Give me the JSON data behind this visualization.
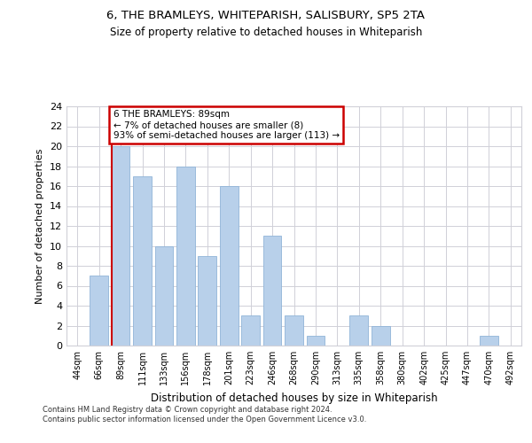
{
  "title_line1": "6, THE BRAMLEYS, WHITEPARISH, SALISBURY, SP5 2TA",
  "title_line2": "Size of property relative to detached houses in Whiteparish",
  "xlabel": "Distribution of detached houses by size in Whiteparish",
  "ylabel": "Number of detached properties",
  "categories": [
    "44sqm",
    "66sqm",
    "89sqm",
    "111sqm",
    "133sqm",
    "156sqm",
    "178sqm",
    "201sqm",
    "223sqm",
    "246sqm",
    "268sqm",
    "290sqm",
    "313sqm",
    "335sqm",
    "358sqm",
    "380sqm",
    "402sqm",
    "425sqm",
    "447sqm",
    "470sqm",
    "492sqm"
  ],
  "values": [
    0,
    7,
    20,
    17,
    10,
    18,
    9,
    16,
    3,
    11,
    3,
    1,
    0,
    3,
    2,
    0,
    0,
    0,
    0,
    1,
    0
  ],
  "bar_color": "#b8d0ea",
  "bar_edge_color": "#90b4d8",
  "highlight_index": 2,
  "highlight_line_color": "#cc0000",
  "annotation_text": "6 THE BRAMLEYS: 89sqm\n← 7% of detached houses are smaller (8)\n93% of semi-detached houses are larger (113) →",
  "annotation_box_color": "#ffffff",
  "annotation_box_edge_color": "#cc0000",
  "ylim": [
    0,
    24
  ],
  "yticks": [
    0,
    2,
    4,
    6,
    8,
    10,
    12,
    14,
    16,
    18,
    20,
    22,
    24
  ],
  "footer_line1": "Contains HM Land Registry data © Crown copyright and database right 2024.",
  "footer_line2": "Contains public sector information licensed under the Open Government Licence v3.0.",
  "bg_color": "#ffffff",
  "grid_color": "#d0d0d8"
}
